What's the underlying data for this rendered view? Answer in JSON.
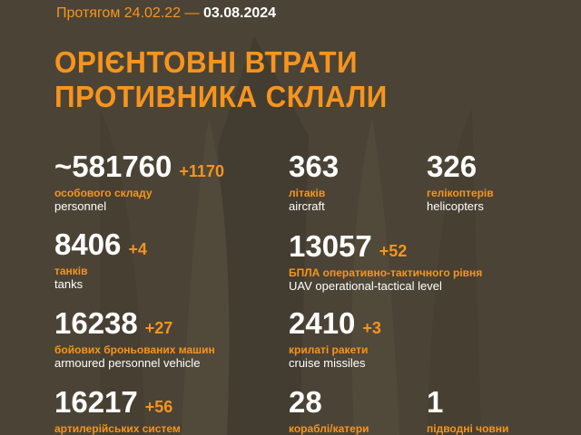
{
  "header": {
    "period_prefix": "Протягом 24.02.22 —",
    "date": "03.08.2024",
    "title_line1": "ОРІЄНТОВНІ ВТРАТИ",
    "title_line2": "ПРОТИВНИКА СКЛАЛИ"
  },
  "colors": {
    "background": "#4b4436",
    "accent": "#f7941d",
    "text": "#ffffff"
  },
  "stats": [
    {
      "value": "~581760",
      "increment": "+1170",
      "label_ua": "особового складу",
      "label_en": "personnel"
    },
    {
      "value": "363",
      "increment": "",
      "label_ua": "літаків",
      "label_en": "aircraft"
    },
    {
      "value": "326",
      "increment": "",
      "label_ua": "гелікоптерів",
      "label_en": "helicopters"
    },
    {
      "value": "8406",
      "increment": "+4",
      "label_ua": "танків",
      "label_en": "tanks"
    },
    {
      "value": "13057",
      "increment": "+52",
      "label_ua": "БПЛА оперативно-тактичного рівня",
      "label_en": "UAV operational-tactical level"
    },
    {
      "value": "16238",
      "increment": "+27",
      "label_ua": "бойових броньованих машин",
      "label_en": "armoured personnel vehicle"
    },
    {
      "value": "2410",
      "increment": "+3",
      "label_ua": "крилаті ракети",
      "label_en": "cruise missiles"
    },
    {
      "value": "16217",
      "increment": "+56",
      "label_ua": "артилерійських систем",
      "label_en": ""
    },
    {
      "value": "28",
      "increment": "",
      "label_ua": "кораблі/катери",
      "label_en": ""
    },
    {
      "value": "1",
      "increment": "",
      "label_ua": "підводні човни",
      "label_en": ""
    }
  ]
}
